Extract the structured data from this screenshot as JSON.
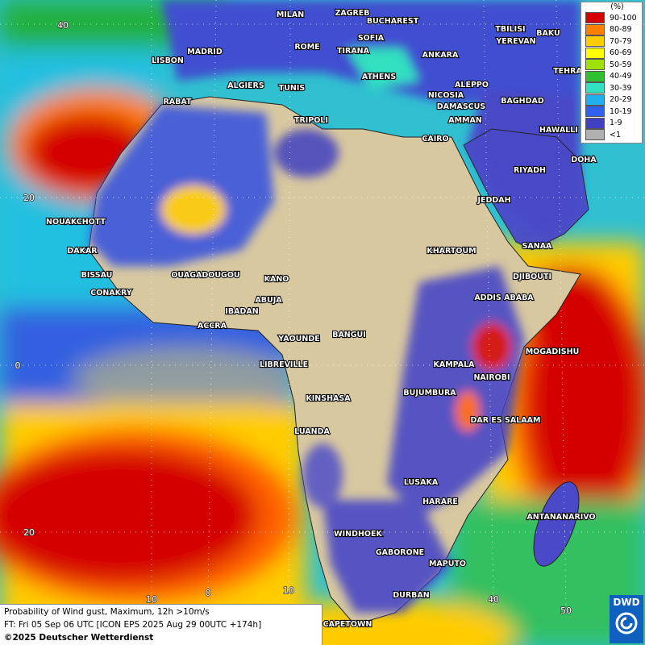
{
  "map": {
    "city_labels": [
      "MILAN",
      "ZAGREB",
      "BUCHAREST",
      "TBILISI",
      "BAKU",
      "LISBON",
      "MADRID",
      "ROME",
      "SOFIA",
      "TIRANA",
      "ANKARA",
      "YEREVAN",
      "TEHRA",
      "ATHENS",
      "ALGIERS",
      "TUNIS",
      "RABAT",
      "ALEPPO",
      "NICOSIA",
      "BAGHDAD",
      "TRIPOLI",
      "DAMASCUS",
      "AMMAN",
      "CAIRO",
      "HAWALLI",
      "DOHA",
      "RIYADH",
      "JEDDAH",
      "NOUAKCHOTT",
      "SANAA",
      "DAKAR",
      "KHARTOUM",
      "BISSAU",
      "DJIBOUTI",
      "OUAGADOUGOU",
      "KANO",
      "CONAKRY",
      "ADDIS ABABA",
      "ABUJA",
      "IBADAN",
      "ACCRA",
      "YAOUNDE",
      "BANGUI",
      "MOGADISHU",
      "LIBREVILLE",
      "KAMPALA",
      "NAIROBI",
      "BUJUMBURA",
      "KINSHASA",
      "DAR ES SALAAM",
      "LUANDA",
      "LUSAKA",
      "HARARE",
      "ANTANANARIVO",
      "WINDHOEK",
      "GABORONE",
      "MAPUTO",
      "DURBAN",
      "CAPETOWN"
    ],
    "lat_labels": [
      "40",
      "20",
      "0",
      "20"
    ],
    "lon_labels": [
      "10",
      "0",
      "10",
      "40",
      "50"
    ]
  },
  "legend": {
    "title": "(%)",
    "items": [
      {
        "label": "90-100",
        "color": "#d40000"
      },
      {
        "label": "80-89",
        "color": "#ff7f00"
      },
      {
        "label": "70-79",
        "color": "#ffcc00"
      },
      {
        "label": "60-69",
        "color": "#ffff00"
      },
      {
        "label": "50-59",
        "color": "#a0e000"
      },
      {
        "label": "40-49",
        "color": "#30c030"
      },
      {
        "label": "30-39",
        "color": "#30e0c0"
      },
      {
        "label": "20-29",
        "color": "#20b0f0"
      },
      {
        "label": "10-19",
        "color": "#3060f0"
      },
      {
        "label": "1-9",
        "color": "#4040c0"
      },
      {
        "label": "<1",
        "color": "#b0b0b0"
      }
    ]
  },
  "caption": {
    "lines": [
      "Probability of Wind gust, Maximum, 12h >10m/s",
      "FT: Fri 05 Sep 06 UTC [ICON EPS 2025 Aug 29 00UTC +174h]",
      "©2025 Deutscher Wetterdienst"
    ]
  },
  "logo": "DWD"
}
